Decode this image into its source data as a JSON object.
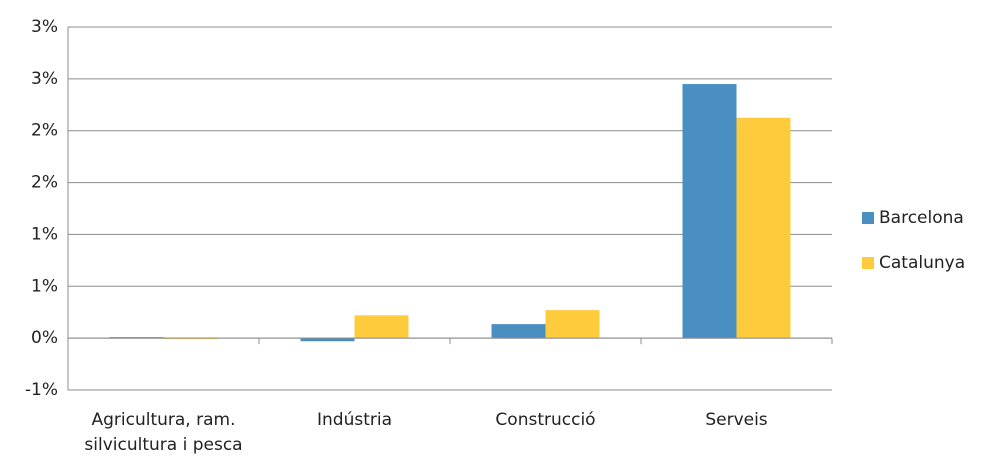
{
  "chart_data": {
    "type": "bar",
    "categories": [
      "Agricultura, ram. silvicultura i pesca",
      "Indústria",
      "Construcció",
      "Serveis"
    ],
    "series": [
      {
        "name": "Barcelona",
        "color": "#4a8fc2",
        "values": [
          0.01,
          -0.03,
          0.135,
          2.45
        ]
      },
      {
        "name": "Catalunya",
        "color": "#fdcb3b",
        "values": [
          0,
          0.22,
          0.27,
          2.125
        ]
      }
    ],
    "ylim": [
      -0.5,
      3
    ],
    "yticks": [
      {
        "value": -0.5,
        "label": "-1%"
      },
      {
        "value": 0,
        "label": "0%"
      },
      {
        "value": 0.5,
        "label": "1%"
      },
      {
        "value": 1,
        "label": "1%"
      },
      {
        "value": 1.5,
        "label": "2%"
      },
      {
        "value": 2,
        "label": "2%"
      },
      {
        "value": 2.5,
        "label": "3%"
      },
      {
        "value": 3,
        "label": "3%"
      }
    ],
    "grid": true,
    "legend": "right"
  }
}
